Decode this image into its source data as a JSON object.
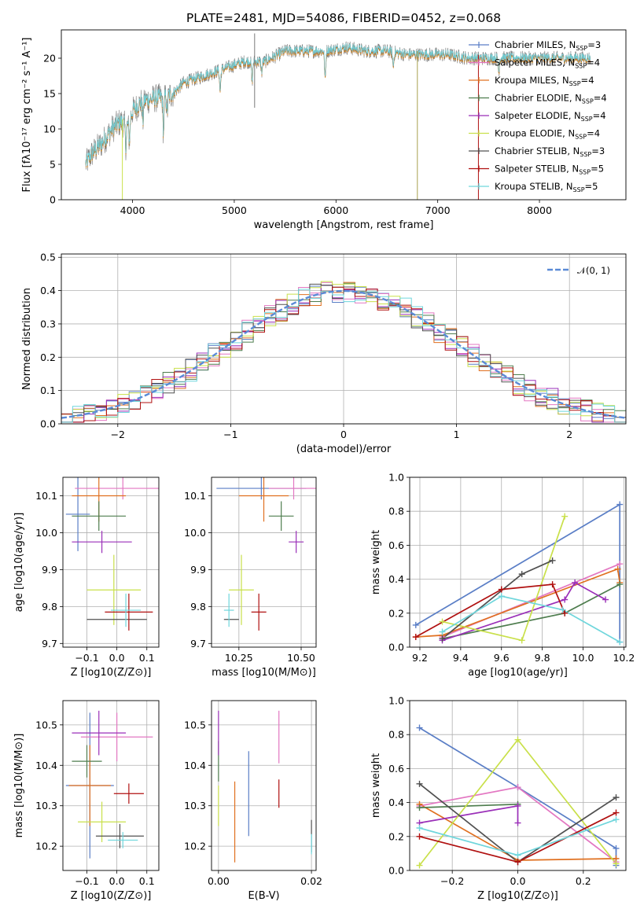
{
  "figure": {
    "title": "PLATE=2481, MJD=54086, FIBERID=0452, z=0.068",
    "colors": {
      "Chabrier MILES": "#5a7ec6",
      "Salpeter MILES": "#e377c2",
      "Kroupa MILES": "#e07020",
      "Chabrier ELODIE": "#4e7d4e",
      "Salpeter ELODIE": "#9a2fb8",
      "Kroupa ELODIE": "#c9e04a",
      "Chabrier STELIB": "#505050",
      "Salpeter STELIB": "#b01010",
      "Kroupa STELIB": "#6fd6dc"
    }
  },
  "chart_data": [
    {
      "id": "spectrum",
      "type": "line",
      "xlabel": "wavelength [Angstrom, rest frame]",
      "ylabel": "Flux [f$_\\lambda$10$^{-17}$ erg cm$^{-2}$ s$^{-1}$ A$^{-1}$]",
      "ylabel_text": "Flux [fλ10⁻¹⁷ erg cm⁻² s⁻¹ A⁻¹]",
      "xlim": [
        3300,
        8850
      ],
      "ylim": [
        0,
        24
      ],
      "xticks": [
        "4000",
        "5000",
        "6000",
        "7000",
        "8000"
      ],
      "yticks": [
        "0",
        "5",
        "10",
        "15",
        "20"
      ],
      "grid": false,
      "legend_position": "top-right",
      "legend": [
        "Chabrier MILES, N_SSP=3",
        "Salpeter MILES, N_SSP=4",
        "Kroupa MILES, N_SSP=4",
        "Chabrier ELODIE, N_SSP=4",
        "Salpeter ELODIE, N_SSP=4",
        "Kroupa ELODIE, N_SSP=4",
        "Chabrier STELIB, N_SSP=3",
        "Salpeter STELIB, N_SSP=5",
        "Kroupa STELIB, N_SSP=5"
      ],
      "legend_labels": [
        {
          "model": "Chabrier MILES",
          "n": "3"
        },
        {
          "model": "Salpeter MILES",
          "n": "4"
        },
        {
          "model": "Kroupa MILES",
          "n": "4"
        },
        {
          "model": "Chabrier ELODIE",
          "n": "4"
        },
        {
          "model": "Salpeter ELODIE",
          "n": "4"
        },
        {
          "model": "Kroupa ELODIE",
          "n": "4"
        },
        {
          "model": "Chabrier STELIB",
          "n": "3"
        },
        {
          "model": "Salpeter STELIB",
          "n": "5"
        },
        {
          "model": "Kroupa STELIB",
          "n": "5"
        }
      ],
      "continuum": [
        [
          3540,
          5
        ],
        [
          3600,
          6.5
        ],
        [
          3700,
          8
        ],
        [
          3800,
          10
        ],
        [
          3880,
          11
        ],
        [
          3950,
          10.5
        ],
        [
          4000,
          12.5
        ],
        [
          4100,
          14
        ],
        [
          4300,
          14.5
        ],
        [
          4400,
          15
        ],
        [
          4500,
          16.5
        ],
        [
          4700,
          17.5
        ],
        [
          4900,
          18.5
        ],
        [
          5100,
          19.5
        ],
        [
          5300,
          19.5
        ],
        [
          5500,
          21
        ],
        [
          5700,
          21
        ],
        [
          5900,
          21
        ],
        [
          6100,
          21.5
        ],
        [
          6300,
          21
        ],
        [
          6500,
          21
        ],
        [
          6700,
          20.5
        ],
        [
          6900,
          20.5
        ],
        [
          7100,
          20.5
        ],
        [
          7300,
          20
        ],
        [
          7500,
          20
        ],
        [
          7700,
          20
        ],
        [
          7900,
          20
        ],
        [
          8100,
          20
        ],
        [
          8300,
          20
        ],
        [
          8500,
          20
        ]
      ],
      "absorption_lines": [
        [
          3934,
          3
        ],
        [
          3969,
          3
        ],
        [
          4102,
          3
        ],
        [
          4304,
          5
        ],
        [
          4340,
          2.5
        ],
        [
          4861,
          3
        ],
        [
          5175,
          3
        ],
        [
          5270,
          1.5
        ],
        [
          5893,
          4
        ],
        [
          6563,
          2
        ],
        [
          7600,
          2
        ]
      ],
      "dropouts": [
        [
          3900,
          0
        ],
        [
          5200,
          13
        ],
        [
          6800,
          0
        ],
        [
          7400,
          0
        ]
      ]
    },
    {
      "id": "residuals",
      "type": "histogram",
      "xlabel": "(data-model)/error",
      "ylabel": "Normed distribution",
      "xlim": [
        -2.5,
        2.5
      ],
      "ylim": [
        0,
        0.51
      ],
      "xticks": [
        "−2",
        "−1",
        "0",
        "1",
        "2"
      ],
      "yticks": [
        "0.0",
        "0.1",
        "0.2",
        "0.3",
        "0.4",
        "0.5"
      ],
      "grid": true,
      "legend_position": "top-right",
      "reference_curve": {
        "name": "N(0,1)",
        "legend_text": "𝒩(0, 1)",
        "mean": 0,
        "sigma": 1,
        "color": "#5a8ad6"
      },
      "bin_width": 0.1
    },
    {
      "id": "age-vs-metallicity",
      "type": "scatter",
      "xlabel": "Z [log10(Z/Z⊙)]",
      "ylabel": "age  [log10(age/yr)]",
      "xlim": [
        -0.18,
        0.14
      ],
      "ylim": [
        9.69,
        10.15
      ],
      "xticks": [
        "−0.1",
        "0.0",
        "0.1"
      ],
      "yticks": [
        "9.7",
        "9.8",
        "9.9",
        "10.0",
        "10.1"
      ],
      "grid": true,
      "points": [
        {
          "series": "Chabrier MILES",
          "x": -0.13,
          "y": 10.05,
          "xerr": 0.04,
          "yerr": 0.1
        },
        {
          "series": "Salpeter MILES",
          "x": 0.02,
          "y": 10.12,
          "xerr": 0.16,
          "yerr": 0.03
        },
        {
          "series": "Kroupa MILES",
          "x": -0.06,
          "y": 10.1,
          "xerr": 0.09,
          "yerr": 0.07
        },
        {
          "series": "Chabrier ELODIE",
          "x": -0.06,
          "y": 10.045,
          "xerr": 0.09,
          "yerr": 0.04
        },
        {
          "series": "Salpeter ELODIE",
          "x": -0.05,
          "y": 9.975,
          "xerr": 0.1,
          "yerr": 0.03
        },
        {
          "series": "Kroupa ELODIE",
          "x": -0.01,
          "y": 9.845,
          "xerr": 0.09,
          "yerr": 0.095
        },
        {
          "series": "Chabrier STELIB",
          "x": 0.0,
          "y": 9.765,
          "xerr": 0.1,
          "yerr": 0.0
        },
        {
          "series": "Salpeter STELIB",
          "x": 0.04,
          "y": 9.785,
          "xerr": 0.08,
          "yerr": 0.05
        },
        {
          "series": "Kroupa STELIB",
          "x": 0.03,
          "y": 9.79,
          "xerr": 0.05,
          "yerr": 0.045
        }
      ]
    },
    {
      "id": "age-vs-mass",
      "type": "scatter",
      "xlabel": "mass [log10(M/M⊙)]",
      "ylabel": "",
      "xlim": [
        10.14,
        10.56
      ],
      "ylim": [
        9.69,
        10.15
      ],
      "xticks": [
        "10.25",
        "10.50"
      ],
      "yticks": [
        "9.7",
        "9.8",
        "9.9",
        "10.0",
        "10.1"
      ],
      "grid": true,
      "points": [
        {
          "series": "Chabrier MILES",
          "x": 10.34,
          "y": 10.12,
          "xerr": 0.18,
          "yerr": 0.03
        },
        {
          "series": "Salpeter MILES",
          "x": 10.47,
          "y": 10.12,
          "xerr": 0.1,
          "yerr": 0.03
        },
        {
          "series": "Kroupa MILES",
          "x": 10.35,
          "y": 10.1,
          "xerr": 0.1,
          "yerr": 0.07
        },
        {
          "series": "Chabrier ELODIE",
          "x": 10.42,
          "y": 10.045,
          "xerr": 0.05,
          "yerr": 0.04
        },
        {
          "series": "Salpeter ELODIE",
          "x": 10.48,
          "y": 9.975,
          "xerr": 0.03,
          "yerr": 0.03
        },
        {
          "series": "Kroupa ELODIE",
          "x": 10.26,
          "y": 9.845,
          "xerr": 0.05,
          "yerr": 0.095
        },
        {
          "series": "Chabrier STELIB",
          "x": 10.22,
          "y": 9.765,
          "xerr": 0.03,
          "yerr": 0.0
        },
        {
          "series": "Salpeter STELIB",
          "x": 10.33,
          "y": 9.785,
          "xerr": 0.03,
          "yerr": 0.05
        },
        {
          "series": "Kroupa STELIB",
          "x": 10.21,
          "y": 9.79,
          "xerr": 0.02,
          "yerr": 0.045
        }
      ]
    },
    {
      "id": "mass-weight-vs-age",
      "type": "line",
      "xlabel": "age  [log10(age/yr)]",
      "ylabel": "mass weight",
      "xlim": [
        9.15,
        10.21
      ],
      "ylim": [
        0,
        1
      ],
      "xticks": [
        "9.2",
        "9.4",
        "9.6",
        "9.8",
        "10.0",
        "10.2"
      ],
      "yticks": [
        "0.0",
        "0.2",
        "0.4",
        "0.6",
        "0.8",
        "1.0"
      ],
      "grid": true,
      "series": [
        {
          "name": "Chabrier MILES",
          "x": [
            9.18,
            10.18,
            10.18
          ],
          "y": [
            0.13,
            0.84,
            0.03
          ]
        },
        {
          "name": "Salpeter MILES",
          "x": [
            9.31,
            10.18
          ],
          "y": [
            0.06,
            0.49
          ]
        },
        {
          "name": "Kroupa MILES",
          "x": [
            9.18,
            9.31,
            10.17,
            10.18
          ],
          "y": [
            0.06,
            0.07,
            0.46,
            0.38
          ]
        },
        {
          "name": "Chabrier ELODIE",
          "x": [
            9.31,
            9.91,
            10.18
          ],
          "y": [
            0.05,
            0.2,
            0.37
          ]
        },
        {
          "name": "Salpeter ELODIE",
          "x": [
            9.31,
            9.91,
            9.96,
            10.11
          ],
          "y": [
            0.04,
            0.28,
            0.38,
            0.28
          ]
        },
        {
          "name": "Kroupa ELODIE",
          "x": [
            9.31,
            9.7,
            9.91
          ],
          "y": [
            0.15,
            0.04,
            0.77
          ]
        },
        {
          "name": "Chabrier STELIB",
          "x": [
            9.31,
            9.7,
            9.85
          ],
          "y": [
            0.05,
            0.43,
            0.51
          ]
        },
        {
          "name": "Salpeter STELIB",
          "x": [
            9.18,
            9.6,
            9.85,
            9.91
          ],
          "y": [
            0.06,
            0.34,
            0.37,
            0.2
          ]
        },
        {
          "name": "Kroupa STELIB",
          "x": [
            9.31,
            9.6,
            9.9,
            10.18
          ],
          "y": [
            0.09,
            0.3,
            0.22,
            0.03
          ]
        }
      ]
    },
    {
      "id": "mass-vs-metallicity",
      "type": "scatter",
      "xlabel": "Z [log10(Z/Z⊙)]",
      "ylabel": "mass [log10(M/M⊙)]",
      "xlim": [
        -0.18,
        0.14
      ],
      "ylim": [
        10.14,
        10.56
      ],
      "xticks": [
        "−0.1",
        "0.0",
        "0.1"
      ],
      "yticks": [
        "10.2",
        "10.3",
        "10.4",
        "10.5"
      ],
      "grid": true,
      "points": [
        {
          "series": "Chabrier MILES",
          "x": -0.09,
          "y": 10.35,
          "xerr": 0.08,
          "yerr": 0.18
        },
        {
          "series": "Salpeter MILES",
          "x": 0.0,
          "y": 10.47,
          "xerr": 0.12,
          "yerr": 0.06
        },
        {
          "series": "Kroupa MILES",
          "x": -0.09,
          "y": 10.35,
          "xerr": 0.07,
          "yerr": 0.1
        },
        {
          "series": "Chabrier ELODIE",
          "x": -0.1,
          "y": 10.41,
          "xerr": 0.05,
          "yerr": 0.04
        },
        {
          "series": "Salpeter ELODIE",
          "x": -0.06,
          "y": 10.48,
          "xerr": 0.09,
          "yerr": 0.055
        },
        {
          "series": "Kroupa ELODIE",
          "x": -0.05,
          "y": 10.26,
          "xerr": 0.08,
          "yerr": 0.05
        },
        {
          "series": "Chabrier STELIB",
          "x": 0.01,
          "y": 10.225,
          "xerr": 0.08,
          "yerr": 0.03
        },
        {
          "series": "Salpeter STELIB",
          "x": 0.04,
          "y": 10.33,
          "xerr": 0.05,
          "yerr": 0.025
        },
        {
          "series": "Kroupa STELIB",
          "x": 0.02,
          "y": 10.215,
          "xerr": 0.05,
          "yerr": 0.02
        }
      ]
    },
    {
      "id": "mass-vs-extinction",
      "type": "scatter",
      "xlabel": "E(B-V)",
      "ylabel": "",
      "xlim": [
        -0.0015,
        0.021
      ],
      "ylim": [
        10.14,
        10.56
      ],
      "xticks": [
        "0.00",
        "0.02"
      ],
      "yticks": [
        "10.2",
        "10.3",
        "10.4",
        "10.5"
      ],
      "grid": true,
      "points": [
        {
          "series": "Chabrier MILES",
          "x": 0.0065,
          "y": 10.33,
          "xerr": 0,
          "yerr": 0.105
        },
        {
          "series": "Salpeter MILES",
          "x": 0.013,
          "y": 10.47,
          "xerr": 0,
          "yerr": 0.065
        },
        {
          "series": "Kroupa MILES",
          "x": 0.0035,
          "y": 10.26,
          "xerr": 0,
          "yerr": 0.1
        },
        {
          "series": "Chabrier ELODIE",
          "x": 0.0,
          "y": 10.41,
          "xerr": 0,
          "yerr": 0.05
        },
        {
          "series": "Salpeter ELODIE",
          "x": 0.0,
          "y": 10.48,
          "xerr": 0,
          "yerr": 0.055
        },
        {
          "series": "Kroupa ELODIE",
          "x": 0.0,
          "y": 10.3,
          "xerr": 0,
          "yerr": 0.05
        },
        {
          "series": "Chabrier STELIB",
          "x": 0.02,
          "y": 10.225,
          "xerr": 0,
          "yerr": 0.04
        },
        {
          "series": "Salpeter STELIB",
          "x": 0.013,
          "y": 10.33,
          "xerr": 0,
          "yerr": 0.035
        },
        {
          "series": "Kroupa STELIB",
          "x": 0.02,
          "y": 10.205,
          "xerr": 0,
          "yerr": 0.025
        }
      ]
    },
    {
      "id": "mass-weight-vs-metallicity",
      "type": "line",
      "xlabel": "Z [log10(Z/Z⊙)]",
      "ylabel": "mass weight",
      "xlim": [
        -0.33,
        0.33
      ],
      "ylim": [
        0,
        1
      ],
      "xticks": [
        "−0.2",
        "0.0",
        "0.2"
      ],
      "yticks": [
        "0.0",
        "0.2",
        "0.4",
        "0.6",
        "0.8",
        "1.0"
      ],
      "grid": true,
      "series": [
        {
          "name": "Chabrier MILES",
          "x": [
            -0.3,
            0.0,
            0.3,
            0.3
          ],
          "y": [
            0.84,
            0.49,
            0.13,
            0.03
          ]
        },
        {
          "name": "Salpeter MILES",
          "x": [
            -0.3,
            0.0,
            0.3
          ],
          "y": [
            0.38,
            0.49,
            0.05
          ]
        },
        {
          "name": "Kroupa MILES",
          "x": [
            -0.3,
            0.0,
            0.3
          ],
          "y": [
            0.39,
            0.06,
            0.07
          ]
        },
        {
          "name": "Chabrier ELODIE",
          "x": [
            -0.3,
            0.0
          ],
          "y": [
            0.37,
            0.39
          ]
        },
        {
          "name": "Salpeter ELODIE",
          "x": [
            -0.3,
            0.0,
            0.0
          ],
          "y": [
            0.28,
            0.38,
            0.28
          ]
        },
        {
          "name": "Kroupa ELODIE",
          "x": [
            -0.3,
            0.0,
            0.3
          ],
          "y": [
            0.03,
            0.77,
            0.04
          ]
        },
        {
          "name": "Chabrier STELIB",
          "x": [
            -0.3,
            0.0,
            0.3
          ],
          "y": [
            0.51,
            0.05,
            0.43
          ]
        },
        {
          "name": "Salpeter STELIB",
          "x": [
            -0.3,
            0.0,
            0.3
          ],
          "y": [
            0.2,
            0.05,
            0.34
          ]
        },
        {
          "name": "Kroupa STELIB",
          "x": [
            -0.3,
            0.0,
            0.3
          ],
          "y": [
            0.25,
            0.09,
            0.3
          ]
        }
      ]
    }
  ]
}
